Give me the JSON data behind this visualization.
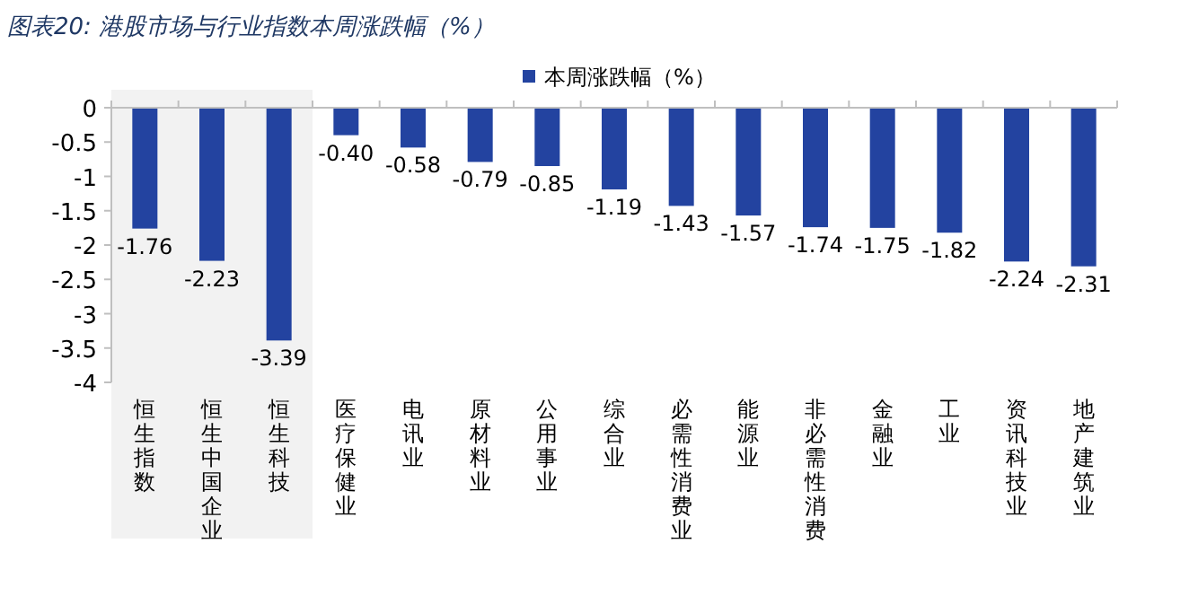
{
  "chart_data": {
    "type": "bar",
    "title": "图表20: 港股市场与行业指数本周涨跌幅（%）",
    "categories": [
      "恒生指数",
      "恒生中国企业",
      "恒生科技",
      "医疗保健业",
      "电讯业",
      "原材料业",
      "公用事业",
      "综合业",
      "必需性消费业",
      "能源业",
      "非必需性消费",
      "金融业",
      "工业",
      "资讯科技业",
      "地产建筑业"
    ],
    "series": [
      {
        "name": "本周涨跌幅（%）",
        "color": "#2343a0",
        "values": [
          -1.76,
          -2.23,
          -3.39,
          -0.4,
          -0.58,
          -0.79,
          -0.85,
          -1.19,
          -1.43,
          -1.57,
          -1.74,
          -1.75,
          -1.82,
          -2.24,
          -2.31
        ]
      }
    ],
    "value_labels": [
      "-1.76",
      "-2.23",
      "-3.39",
      "-0.40",
      "-0.58",
      "-0.79",
      "-0.85",
      "-1.19",
      "-1.43",
      "-1.57",
      "-1.74",
      "-1.75",
      "-1.82",
      "-2.24",
      "-2.31"
    ],
    "ylim": [
      -4,
      0
    ],
    "yticks": [
      -4,
      -3.5,
      -3,
      -2.5,
      -2,
      -1.5,
      -1,
      -0.5,
      0
    ],
    "bands": [
      {
        "axis": "x",
        "from": "恒生指数",
        "to": "恒生科技",
        "color": "#f2f2f2"
      }
    ],
    "grid": false,
    "legend": "top"
  }
}
